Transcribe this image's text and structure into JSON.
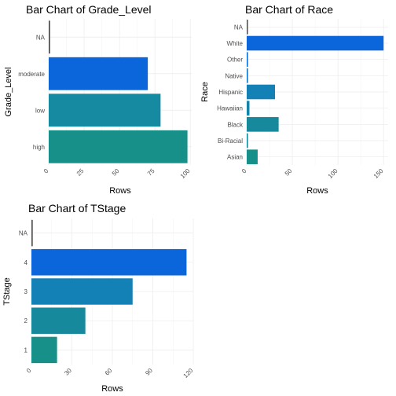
{
  "chart_data": [
    {
      "type": "bar",
      "orientation": "horizontal",
      "title": "Bar Chart of Grade_Level",
      "xlabel": "Rows",
      "ylabel": "Grade_Level",
      "categories": [
        "high",
        "low",
        "moderate",
        "NA"
      ],
      "values": [
        98,
        79,
        70,
        1
      ],
      "colors": [
        "#17908a",
        "#158aa0",
        "#0b66dc",
        "#555555"
      ],
      "xlim": [
        0,
        101
      ],
      "xticks": [
        0,
        25,
        50,
        75,
        100
      ],
      "grid": true,
      "legend": "none"
    },
    {
      "type": "bar",
      "orientation": "horizontal",
      "title": "Bar Chart of Race",
      "xlabel": "Rows",
      "ylabel": "Race",
      "categories": [
        "Asian",
        "Bi-Racial",
        "Black",
        "Hawaiian",
        "Hispanic",
        "Native",
        "Other",
        "White",
        "NA"
      ],
      "values": [
        12,
        1,
        35,
        3,
        31,
        1,
        1,
        150,
        0
      ],
      "colors": [
        "#17908a",
        "#158aa0",
        "#168a9c",
        "#1384a8",
        "#1380b6",
        "#0f78c4",
        "#0c70d2",
        "#0b66dc",
        "#555555"
      ],
      "xlim": [
        0,
        155
      ],
      "xticks": [
        0,
        50,
        100,
        150
      ],
      "grid": true,
      "legend": "none"
    },
    {
      "type": "bar",
      "orientation": "horizontal",
      "title": "Bar Chart of TStage",
      "xlabel": "Rows",
      "ylabel": "TStage",
      "categories": [
        "1",
        "2",
        "3",
        "4",
        "NA"
      ],
      "values": [
        19,
        40,
        75,
        115,
        1
      ],
      "colors": [
        "#17908a",
        "#168a9c",
        "#1380b6",
        "#0b66dc",
        "#555555"
      ],
      "xlim": [
        0,
        120
      ],
      "xticks": [
        0,
        30,
        60,
        90,
        120
      ],
      "grid": true,
      "legend": "none"
    }
  ]
}
